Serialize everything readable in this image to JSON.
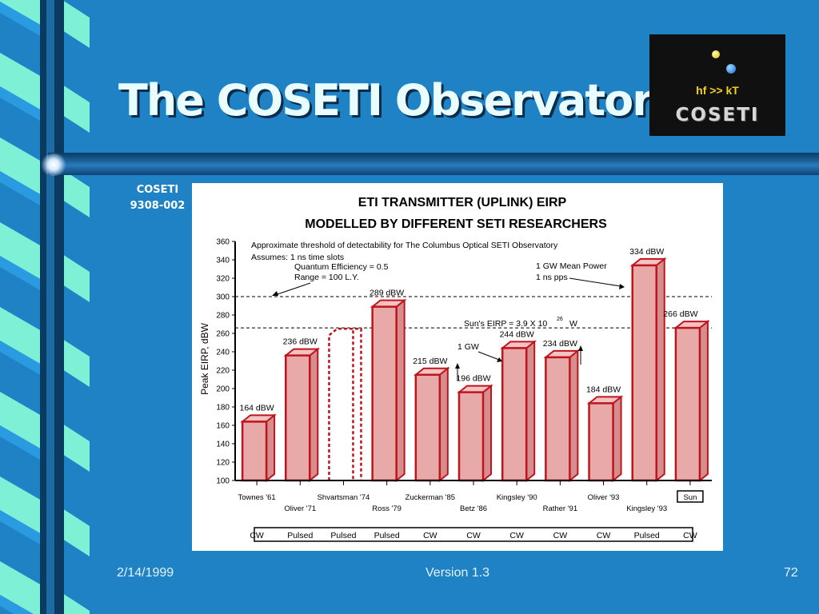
{
  "slide": {
    "title": "The COSETI Observatory",
    "code_line1": "COSETI",
    "code_line2": "9308-002",
    "footer_date": "2/14/1999",
    "footer_version": "Version 1.3",
    "footer_page": "72"
  },
  "logo": {
    "formula": "hf >> kT",
    "wordmark": "COSETI"
  },
  "colors": {
    "background": "#1e82c4",
    "bar_fill": "#e8a9a9",
    "bar_edge": "#c0141c",
    "ribbon_light": "#7ef0d6",
    "ribbon_mid": "#2a9be0",
    "column_dark": "#0b3a60"
  },
  "chart_data": {
    "type": "bar",
    "title": "ETI TRANSMITTER (UPLINK) EIRP",
    "subtitle": "MODELLED BY DIFFERENT SETI RESEARCHERS",
    "ylabel": "Peak EIRP, dBW",
    "xlabel": "",
    "ylim": [
      100,
      360
    ],
    "yticks": [
      100,
      120,
      140,
      160,
      180,
      200,
      220,
      240,
      260,
      280,
      300,
      320,
      340,
      360
    ],
    "bars": [
      {
        "category": "Townes '61",
        "value": 164,
        "label": "164 dBW",
        "mode": "CW"
      },
      {
        "category": "Oliver '71",
        "value": 236,
        "label": "236 dBW",
        "mode": "Pulsed"
      },
      {
        "category": "Shvartsman '74",
        "value": 258,
        "label": "",
        "mode": "Pulsed",
        "outline_only": true
      },
      {
        "category": "Ross '79",
        "value": 289,
        "label": "289 dBW",
        "mode": "Pulsed"
      },
      {
        "category": "Zuckerman '85",
        "value": 215,
        "label": "215 dBW",
        "mode": "CW"
      },
      {
        "category": "Betz '86",
        "value": 196,
        "label": "196 dBW",
        "mode": "CW"
      },
      {
        "category": "Kingsley '90",
        "value": 244,
        "label": "244 dBW",
        "mode": "CW"
      },
      {
        "category": "Rather '91",
        "value": 234,
        "label": "234 dBW",
        "mode": "CW"
      },
      {
        "category": "Oliver '93",
        "value": 184,
        "label": "184 dBW",
        "mode": "CW"
      },
      {
        "category": "Kingsley '93",
        "value": 334,
        "label": "334 dBW",
        "mode": "Pulsed"
      },
      {
        "category": "Sun",
        "value": 266,
        "label": "266 dBW",
        "mode": "CW",
        "boxed": true
      }
    ],
    "reference_lines": [
      {
        "value": 300,
        "style": "dashed"
      },
      {
        "value": 266,
        "style": "dashed"
      }
    ],
    "annotations": {
      "threshold_line1": "Approximate threshold of detectability for The Columbus Optical SETI Observatory",
      "threshold_line2": "Assumes: 1 ns time slots",
      "threshold_line3": "Quantum Efficiency = 0.5",
      "threshold_line4": "Range = 100 L.Y.",
      "sun_eirp_text": "Sun's EIRP = 3.9 X 10",
      "sun_eirp_exponent": "26",
      "sun_eirp_unit": "W",
      "one_gw": "1 GW",
      "gw_mean_power": "1 GW Mean Power",
      "ns_pps": "1 ns pps"
    }
  }
}
